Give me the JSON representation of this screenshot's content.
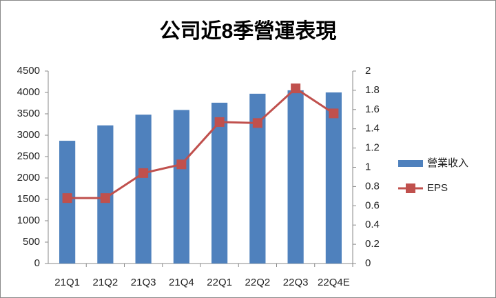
{
  "chart_data": {
    "type": "bar",
    "title": "公司近8季營運表現",
    "categories": [
      "21Q1",
      "21Q2",
      "21Q3",
      "21Q4",
      "22Q1",
      "22Q2",
      "22Q3",
      "22Q4E"
    ],
    "series": [
      {
        "name": "營業收入",
        "type": "bar",
        "color": "#4f81bd",
        "values": [
          2870,
          3230,
          3480,
          3590,
          3760,
          3970,
          4050,
          4000
        ]
      },
      {
        "name": "EPS",
        "type": "line",
        "axis": "y2",
        "color": "#c0504d",
        "values": [
          0.68,
          0.68,
          0.94,
          1.03,
          1.47,
          1.46,
          1.82,
          1.56
        ]
      }
    ],
    "ylim": [
      0,
      4500
    ],
    "yticks": [
      0,
      500,
      1000,
      1500,
      2000,
      2500,
      3000,
      3500,
      4000,
      4500
    ],
    "y2lim": [
      0,
      2
    ],
    "y2ticks": [
      0,
      0.2,
      0.4,
      0.6,
      0.8,
      1,
      1.2,
      1.4,
      1.6,
      1.8,
      2
    ],
    "grid": false,
    "legend": "right"
  }
}
